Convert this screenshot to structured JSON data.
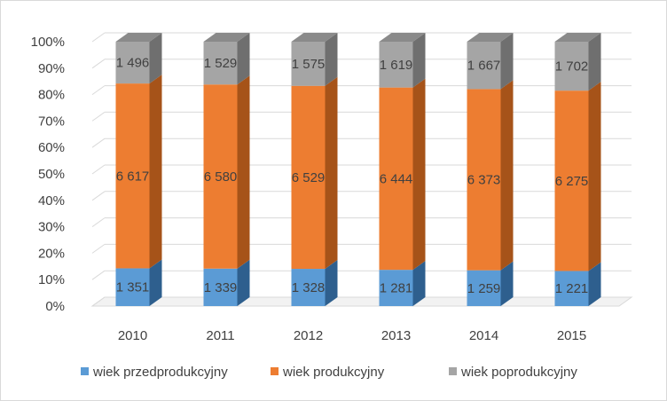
{
  "chart_data": {
    "type": "bar",
    "stacked": "percent",
    "style_3d": true,
    "categories": [
      "2010",
      "2011",
      "2012",
      "2013",
      "2014",
      "2015"
    ],
    "series": [
      {
        "name": "wiek przedprodukcyjny",
        "color": "#5b9bd5",
        "side_color": "#2e5f8e",
        "values": [
          1351,
          1339,
          1328,
          1281,
          1259,
          1221
        ],
        "labels": [
          "1 351",
          "1 339",
          "1 328",
          "1 281",
          "1 259",
          "1 221"
        ]
      },
      {
        "name": "wiek produkcyjny",
        "color": "#ed7d31",
        "side_color": "#a65319",
        "values": [
          6617,
          6580,
          6529,
          6444,
          6373,
          6275
        ],
        "labels": [
          "6 617",
          "6 580",
          "6 529",
          "6 444",
          "6 373",
          "6 275"
        ]
      },
      {
        "name": "wiek poprodukcyjny",
        "color": "#a5a5a5",
        "side_color": "#6f6f6f",
        "values": [
          1496,
          1529,
          1575,
          1619,
          1667,
          1702
        ],
        "labels": [
          "1 496",
          "1 529",
          "1 575",
          "1 619",
          "1 667",
          "1 702"
        ]
      }
    ],
    "y_ticks": [
      "0%",
      "10%",
      "20%",
      "30%",
      "40%",
      "50%",
      "60%",
      "70%",
      "80%",
      "90%",
      "100%"
    ],
    "ylim": [
      0,
      100
    ],
    "grid": true,
    "legend_position": "bottom"
  }
}
